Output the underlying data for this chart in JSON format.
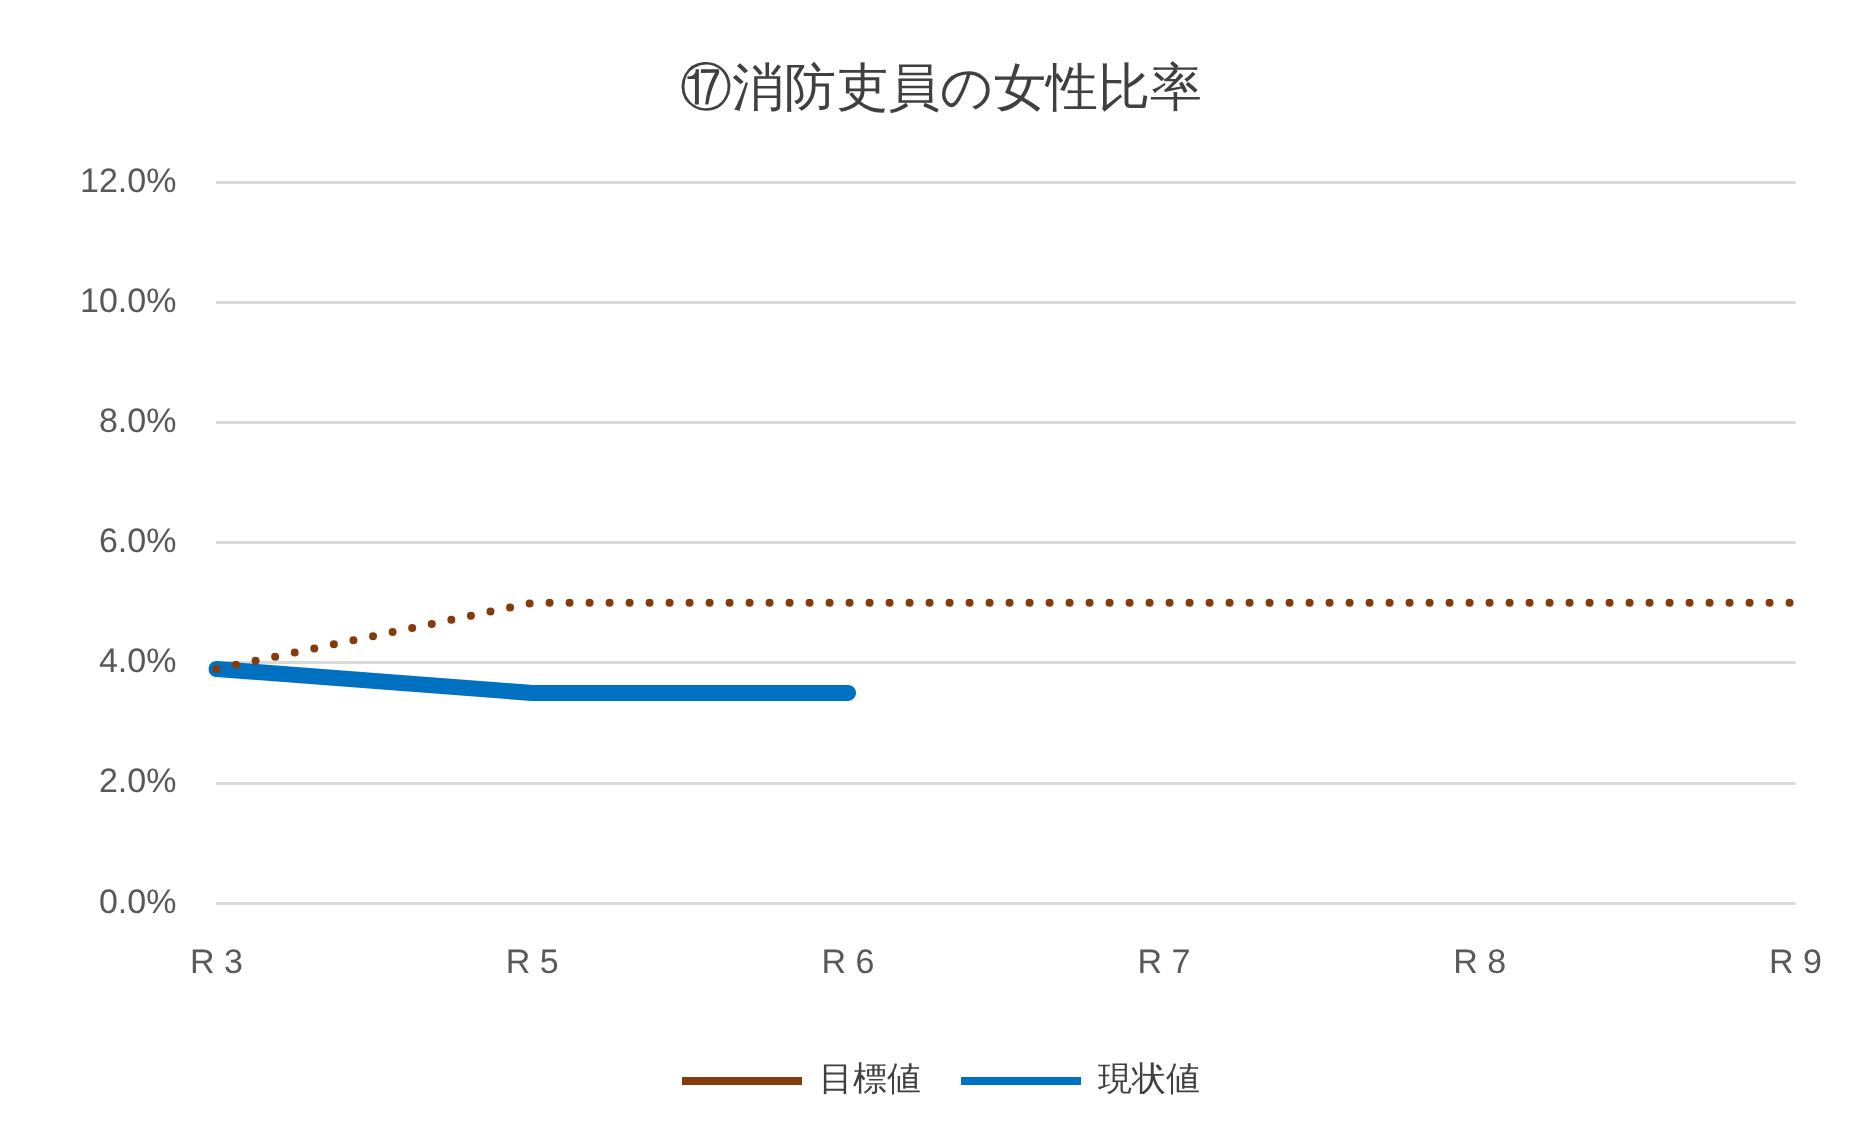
{
  "chart_data": {
    "type": "line",
    "title": "⑰消防吏員の女性比率",
    "categories": [
      "R 3",
      "R 5",
      "R 6",
      "R 7",
      "R 8",
      "R 9"
    ],
    "series": [
      {
        "name": "目標値",
        "color": "#843c0c",
        "line_style": "dotted",
        "values": [
          3.9,
          5.0,
          5.0,
          5.0,
          5.0,
          5.0
        ]
      },
      {
        "name": "現状値",
        "color": "#0070c0",
        "line_style": "solid",
        "values": [
          3.9,
          3.5,
          3.5,
          null,
          null,
          null
        ]
      }
    ],
    "ylim": [
      0,
      12
    ],
    "yticks": [
      {
        "value": 0,
        "label": "0.0%"
      },
      {
        "value": 2,
        "label": "2.0%"
      },
      {
        "value": 4,
        "label": "4.0%"
      },
      {
        "value": 6,
        "label": "6.0%"
      },
      {
        "value": 8,
        "label": "8.0%"
      },
      {
        "value": 10,
        "label": "10.0%"
      },
      {
        "value": 12,
        "label": "12.0%"
      }
    ],
    "grid": "y",
    "legend": "bottom",
    "marker": "none"
  }
}
